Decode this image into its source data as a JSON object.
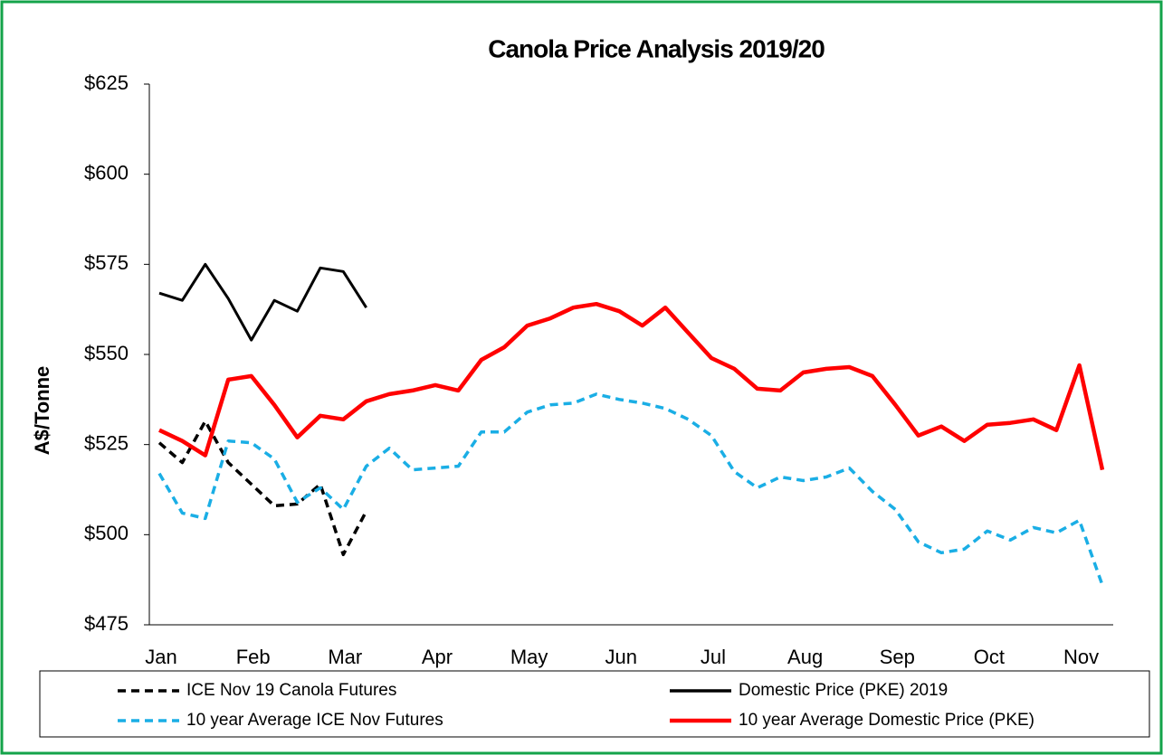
{
  "chart_data": {
    "type": "line",
    "title": "Canola Price Analysis 2019/20",
    "y_label": "A$/Tonne",
    "categories": [
      "Jan",
      null,
      null,
      null,
      "Feb",
      null,
      null,
      null,
      "Mar",
      null,
      null,
      null,
      "Apr",
      null,
      null,
      null,
      "May",
      null,
      null,
      null,
      "Jun",
      null,
      null,
      null,
      "Jul",
      null,
      null,
      null,
      "Aug",
      null,
      null,
      null,
      "Sep",
      null,
      null,
      null,
      "Oct",
      null,
      null,
      null,
      "Nov",
      null
    ],
    "ylim": [
      475,
      625
    ],
    "yticks": [
      {
        "value": 475,
        "label": "$475"
      },
      {
        "value": 500,
        "label": "$500"
      },
      {
        "value": 525,
        "label": "$525"
      },
      {
        "value": 550,
        "label": "$550"
      },
      {
        "value": 575,
        "label": "$575"
      },
      {
        "value": 600,
        "label": "$600"
      },
      {
        "value": 625,
        "label": "$625"
      }
    ],
    "grid": false,
    "legend": "bottom",
    "series": [
      {
        "name": "ICE Nov 19 Canola Futures",
        "color": "#000000",
        "dashed": true,
        "values": [
          525.5,
          520,
          531.5,
          520,
          514,
          508,
          508.5,
          514,
          494.5,
          506.5,
          null,
          null,
          null,
          null,
          null,
          null,
          null,
          null,
          null,
          null,
          null,
          null,
          null,
          null,
          null,
          null,
          null,
          null,
          null,
          null,
          null,
          null,
          null,
          null,
          null,
          null,
          null,
          null,
          null,
          null,
          null,
          null
        ]
      },
      {
        "name": "Domestic Price (PKE) 2019",
        "color": "#000000",
        "dashed": false,
        "values": [
          567,
          565,
          575,
          565.5,
          554,
          565,
          562,
          574,
          573,
          563,
          null,
          null,
          null,
          null,
          null,
          null,
          null,
          null,
          null,
          null,
          null,
          null,
          null,
          null,
          null,
          null,
          null,
          null,
          null,
          null,
          null,
          null,
          null,
          null,
          null,
          null,
          null,
          null,
          null,
          null,
          null,
          null
        ]
      },
      {
        "name": "10 year Average ICE Nov Futures",
        "color": "#1aaee5",
        "dashed": true,
        "values": [
          517,
          506,
          504.5,
          526,
          525.5,
          521,
          509,
          513,
          507,
          519,
          524,
          518,
          518.5,
          519,
          528.5,
          528.5,
          534,
          536,
          536.5,
          539,
          537.5,
          536.5,
          535,
          532,
          527.5,
          517.5,
          513,
          516,
          515,
          516,
          518.5,
          512,
          507,
          498,
          495,
          496,
          501,
          498.5,
          502,
          500.5,
          504,
          486
        ]
      },
      {
        "name": "10 year Average Domestic Price (PKE)",
        "color": "#ff0000",
        "dashed": false,
        "values": [
          529,
          526,
          522,
          543,
          544,
          536,
          527,
          533,
          532,
          537,
          539,
          540,
          541.5,
          540,
          548.5,
          552,
          558,
          560,
          563,
          564,
          562,
          558,
          563,
          556,
          549,
          546,
          540.5,
          540,
          545,
          546,
          546.5,
          544,
          536,
          527.5,
          530,
          526,
          530.5,
          531,
          532,
          529,
          547,
          518
        ]
      }
    ]
  }
}
